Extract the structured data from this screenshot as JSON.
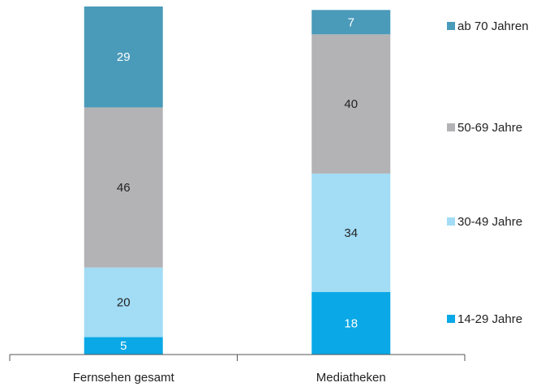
{
  "chart_data": {
    "type": "stacked_bar",
    "categories": [
      "Fernsehen gesamt",
      "Mediatheken"
    ],
    "series": [
      {
        "name": "14-29 Jahre",
        "color": "#0aa8e6",
        "values": [
          5,
          18
        ]
      },
      {
        "name": "30-49 Jahre",
        "color": "#a2dcf5",
        "values": [
          20,
          34
        ]
      },
      {
        "name": "50-69 Jahre",
        "color": "#b3b3b5",
        "values": [
          46,
          40
        ]
      },
      {
        "name": "ab 70 Jahren",
        "color": "#4a9ab9",
        "values": [
          29,
          7
        ]
      }
    ],
    "label_colors": [
      "#ffffff",
      "#222222",
      "#222222",
      "#ffffff"
    ],
    "legend": "right"
  }
}
